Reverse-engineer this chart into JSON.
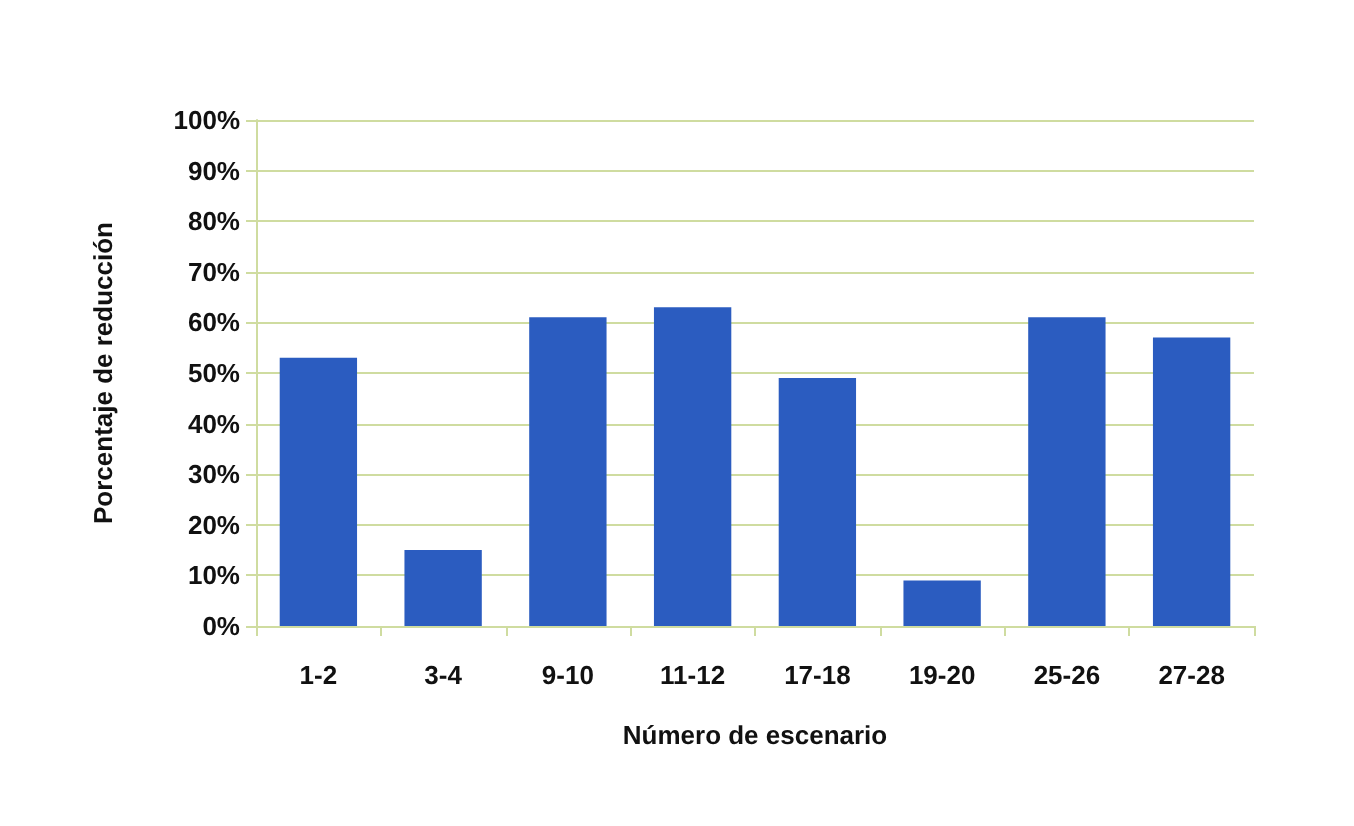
{
  "chart_data": {
    "type": "bar",
    "xlabel": "Número de escenario",
    "ylabel": "Porcentaje de reducción",
    "categories": [
      "1-2",
      "3-4",
      "9-10",
      "11-12",
      "17-18",
      "19-20",
      "25-26",
      "27-28"
    ],
    "values": [
      53,
      15,
      61,
      63,
      49,
      9,
      61,
      57
    ],
    "color": "#2b5cc0",
    "ylim": [
      0,
      100
    ],
    "yticks": [
      {
        "value": 0,
        "label": "0%"
      },
      {
        "value": 10,
        "label": "10%"
      },
      {
        "value": 20,
        "label": "20%"
      },
      {
        "value": 30,
        "label": "30%"
      },
      {
        "value": 40,
        "label": "40%"
      },
      {
        "value": 50,
        "label": "50%"
      },
      {
        "value": 60,
        "label": "60%"
      },
      {
        "value": 70,
        "label": "70%"
      },
      {
        "value": 80,
        "label": "80%"
      },
      {
        "value": 90,
        "label": "90%"
      },
      {
        "value": 100,
        "label": "100%"
      }
    ],
    "grid": true
  }
}
